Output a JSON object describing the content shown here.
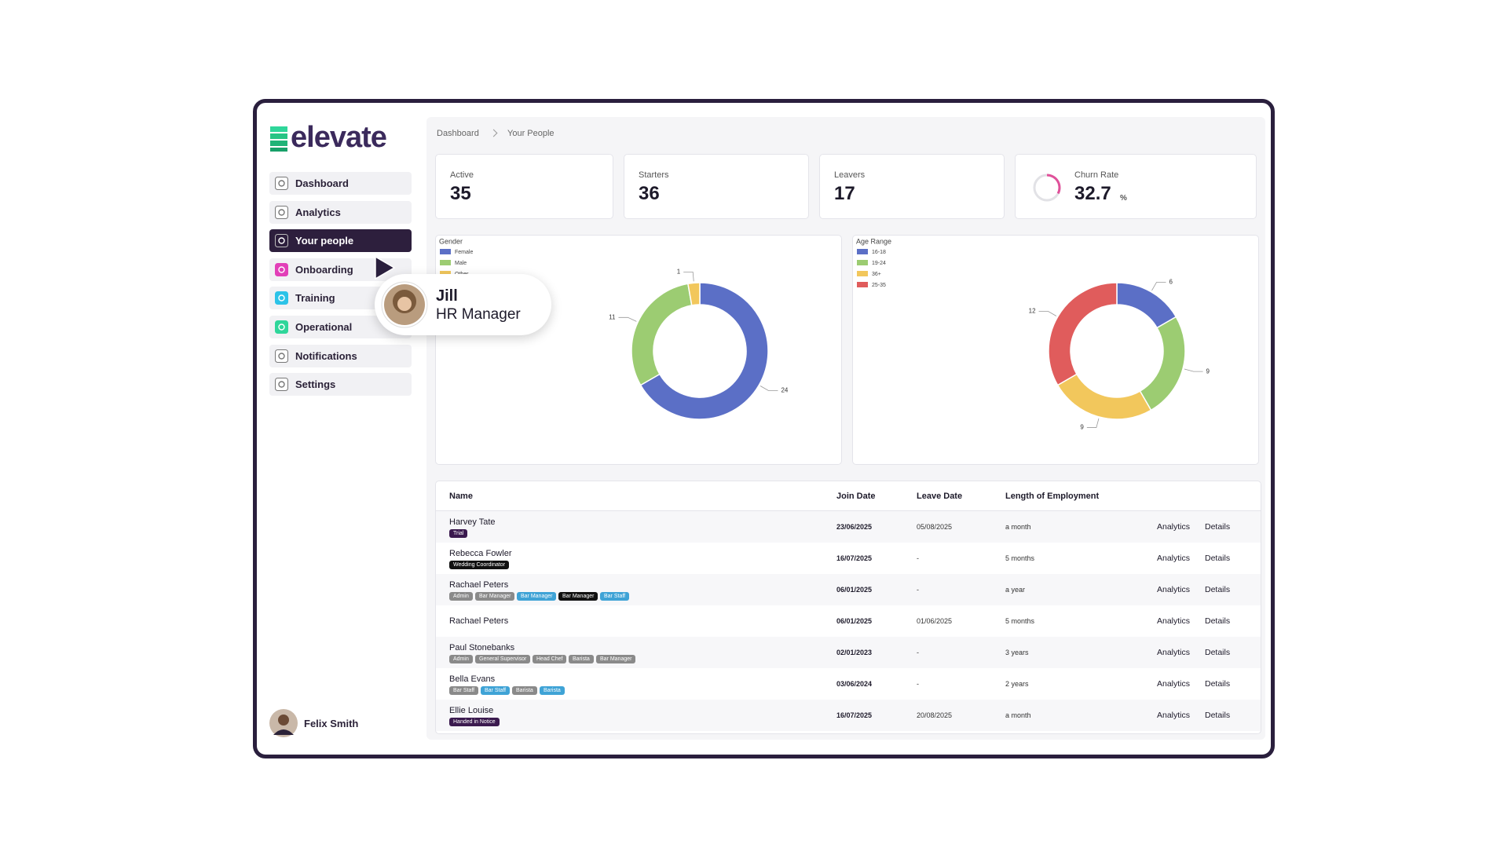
{
  "logo": "elevate",
  "nav": [
    {
      "label": "Dashboard",
      "icon_color": "#ffffff"
    },
    {
      "label": "Analytics",
      "icon_color": "#ffffff"
    },
    {
      "label": "Your people",
      "icon_color": "#2d1f3d",
      "active": true
    },
    {
      "label": "Onboarding",
      "icon_color": "#e23fb8"
    },
    {
      "label": "Training",
      "icon_color": "#2cc3e8"
    },
    {
      "label": "Operational",
      "icon_color": "#2fd69a"
    },
    {
      "label": "Notifications",
      "icon_color": "#ffffff"
    },
    {
      "label": "Settings",
      "icon_color": "#ffffff"
    }
  ],
  "user": {
    "name": "Felix Smith"
  },
  "tooltip": {
    "name": "Jill",
    "role": "HR Manager"
  },
  "breadcrumb": [
    "Dashboard",
    "Your People"
  ],
  "stats": [
    {
      "label": "Active",
      "value": 35
    },
    {
      "label": "Starters",
      "value": 36
    },
    {
      "label": "Leavers",
      "value": 17
    },
    {
      "label": "Churn Rate",
      "value": 32.7,
      "unit": "%",
      "color": "#e0519a"
    }
  ],
  "chart_data": [
    {
      "type": "pie",
      "title": "Gender",
      "categories": [
        "Female",
        "Male",
        "Other"
      ],
      "values": [
        24,
        11,
        1
      ],
      "colors": [
        "#5b6fc6",
        "#9ccc72",
        "#f2c75c"
      ],
      "donut": true
    },
    {
      "type": "pie",
      "title": "Age Range",
      "categories": [
        "16-18",
        "19-24",
        "36+",
        "25-35"
      ],
      "values": [
        6,
        9,
        9,
        12
      ],
      "colors": [
        "#5b6fc6",
        "#9ccc72",
        "#f2c75c",
        "#e05c5c"
      ],
      "donut": true
    }
  ],
  "table": {
    "columns": [
      "Name",
      "Join Date",
      "Leave Date",
      "Length of Employment"
    ],
    "actions": [
      "Analytics",
      "Details"
    ],
    "rows": [
      {
        "name": "Harvey Tate",
        "tags": [
          {
            "text": "Trial",
            "color": "#3b1a4f"
          }
        ],
        "join": "23/06/2025",
        "leave": "05/08/2025",
        "length": "a month"
      },
      {
        "name": "Rebecca Fowler",
        "tags": [
          {
            "text": "Wedding Coordinator",
            "color": "#111111"
          }
        ],
        "join": "16/07/2025",
        "leave": "-",
        "length": "5 months"
      },
      {
        "name": "Rachael Peters",
        "tags": [
          {
            "text": "Admin",
            "color": "#8a8a8a"
          },
          {
            "text": "Bar Manager",
            "color": "#8a8a8a"
          },
          {
            "text": "Bar Manager",
            "color": "#3fa3d6"
          },
          {
            "text": "Bar Manager",
            "color": "#111111"
          },
          {
            "text": "Bar Staff",
            "color": "#3fa3d6"
          }
        ],
        "join": "06/01/2025",
        "leave": "-",
        "length": "a year"
      },
      {
        "name": "Rachael Peters",
        "tags": [],
        "join": "06/01/2025",
        "leave": "01/06/2025",
        "length": "5 months"
      },
      {
        "name": "Paul Stonebanks",
        "tags": [
          {
            "text": "Admin",
            "color": "#8a8a8a"
          },
          {
            "text": "General Supervisor",
            "color": "#8a8a8a"
          },
          {
            "text": "Head Chef",
            "color": "#8a8a8a"
          },
          {
            "text": "Barista",
            "color": "#8a8a8a"
          },
          {
            "text": "Bar Manager",
            "color": "#8a8a8a"
          }
        ],
        "join": "02/01/2023",
        "leave": "-",
        "length": "3 years"
      },
      {
        "name": "Bella Evans",
        "tags": [
          {
            "text": "Bar Staff",
            "color": "#8a8a8a"
          },
          {
            "text": "Bar Staff",
            "color": "#3fa3d6"
          },
          {
            "text": "Barista",
            "color": "#8a8a8a"
          },
          {
            "text": "Barista",
            "color": "#3fa3d6"
          }
        ],
        "join": "03/06/2024",
        "leave": "-",
        "length": "2 years"
      },
      {
        "name": "Ellie Louise",
        "tags": [
          {
            "text": "Handed in Notice",
            "color": "#3b1a4f"
          }
        ],
        "join": "16/07/2025",
        "leave": "20/08/2025",
        "length": "a month"
      }
    ]
  }
}
